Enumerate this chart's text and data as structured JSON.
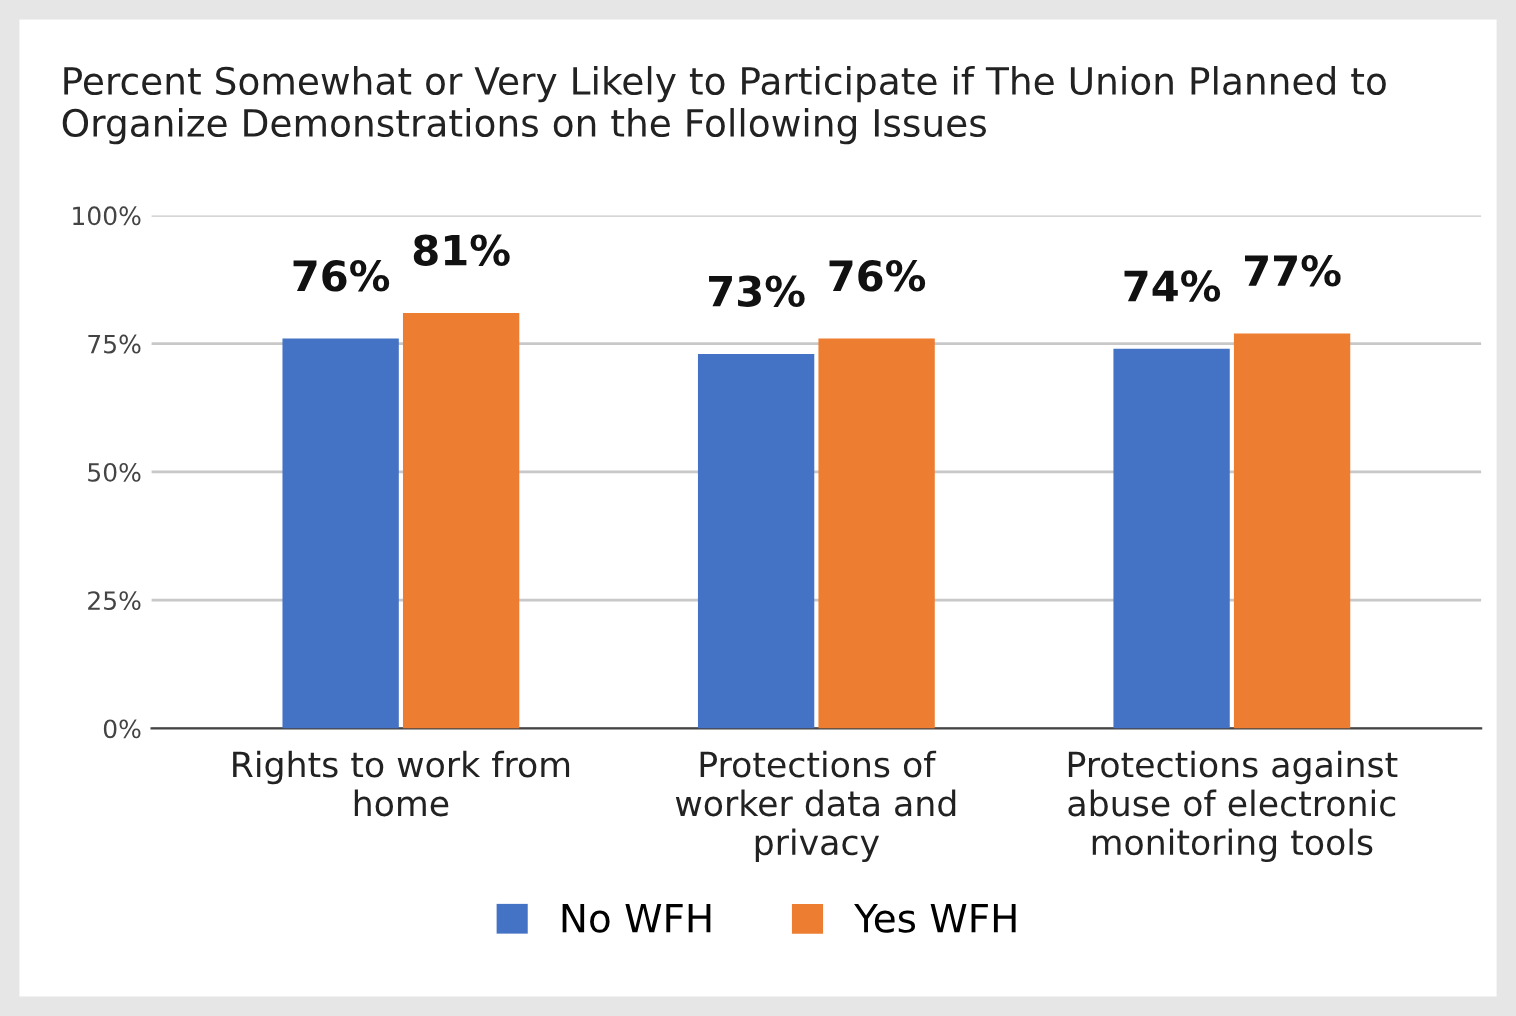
{
  "chart_data": {
    "type": "bar",
    "title": "Percent Somewhat or Very Likely to Participate if The Union Planned to Organize Demonstrations on the Following Issues",
    "categories": [
      "Rights to work from\nhome",
      "Protections of\nworker data and\nprivacy",
      "Protections against\nabuse of electronic\nmonitoring tools"
    ],
    "series": [
      {
        "name": "No WFH",
        "color": "#4472c4",
        "values": [
          76,
          73,
          74
        ],
        "value_labels": [
          "76%",
          "73%",
          "74%"
        ]
      },
      {
        "name": "Yes WFH",
        "color": "#ed7d31",
        "values": [
          81,
          76,
          77
        ],
        "value_labels": [
          "81%",
          "76%",
          "77%"
        ]
      }
    ],
    "ylim": [
      0,
      100
    ],
    "yticks": [
      {
        "value": 0,
        "label": "0%"
      },
      {
        "value": 25,
        "label": "25%"
      },
      {
        "value": 50,
        "label": "50%"
      },
      {
        "value": 75,
        "label": "75%"
      },
      {
        "value": 100,
        "label": "100%"
      }
    ],
    "grid": "y",
    "legend": "bottom"
  }
}
